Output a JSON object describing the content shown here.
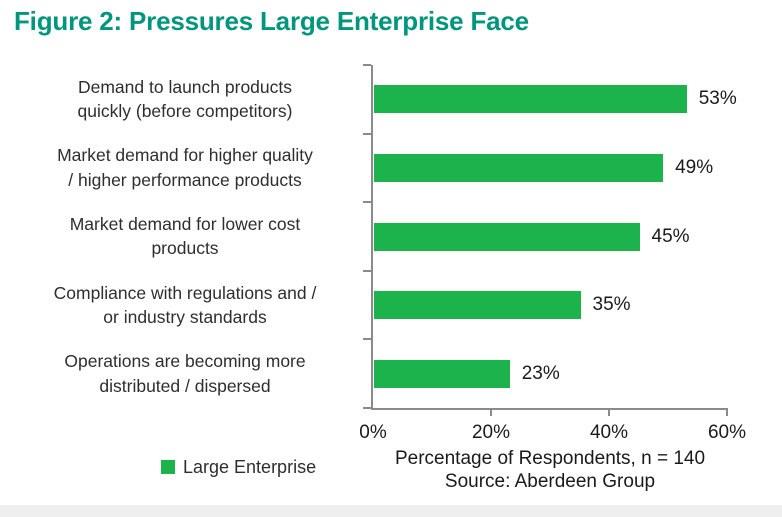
{
  "title": "Figure 2: Pressures Large Enterprise Face",
  "colors": {
    "bar_green": "#1CB24C",
    "title_teal": "#00967D",
    "axis_gray": "#8A8A8A",
    "footer_strip_gray": "#EFEFF0"
  },
  "chart_data": {
    "type": "bar",
    "orientation": "horizontal",
    "title": "Figure 2: Pressures Large Enterprise Face",
    "categories": [
      "Demand to launch products quickly (before competitors)",
      "Market demand for higher quality / higher performance products",
      "Market demand for lower cost products",
      "Compliance with regulations and / or industry standards",
      "Operations are becoming more distributed / dispersed"
    ],
    "category_lines": [
      [
        "Demand to launch products",
        "quickly (before competitors)"
      ],
      [
        "Market demand for higher quality",
        "/ higher performance products"
      ],
      [
        "Market demand for lower cost",
        "products"
      ],
      [
        "Compliance with regulations and /",
        "or industry standards"
      ],
      [
        "Operations are becoming more",
        "distributed / dispersed"
      ]
    ],
    "series": [
      {
        "name": "Large Enterprise",
        "values": [
          53,
          49,
          45,
          35,
          23
        ],
        "color": "#1CB24C"
      }
    ],
    "value_labels": [
      "53%",
      "49%",
      "45%",
      "35%",
      "23%"
    ],
    "x_ticks": [
      "0%",
      "20%",
      "40%",
      "60%"
    ],
    "xlim": [
      0,
      60
    ],
    "xlabel": "Percentage of Respondents, n = 140",
    "source": "Source: Aberdeen Group",
    "legend": {
      "position": "bottom-left",
      "entries": [
        {
          "label": "Large Enterprise",
          "color": "#1CB24C"
        }
      ]
    },
    "grid": false
  }
}
